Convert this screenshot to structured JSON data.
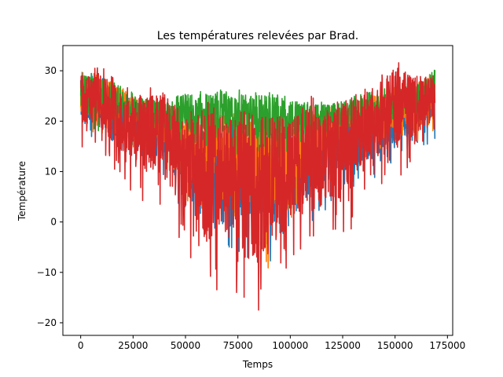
{
  "chart_data": {
    "type": "line",
    "title": "Les températures relevées par Brad.",
    "xlabel": "Temps",
    "ylabel": "Température",
    "xlim": [
      -8500,
      177500
    ],
    "ylim": [
      -22.5,
      35
    ],
    "xticks": [
      0,
      25000,
      50000,
      75000,
      100000,
      125000,
      150000,
      175000
    ],
    "yticks": [
      -20,
      -10,
      0,
      10,
      20,
      30
    ],
    "grid": false,
    "legend": "none",
    "series": [
      {
        "color": "#1f77b4",
        "x": [
          0,
          10000,
          20000,
          30000,
          40000,
          50000,
          60000,
          70000,
          80000,
          90000,
          100000,
          110000,
          120000,
          130000,
          140000,
          150000,
          160000,
          169000
        ],
        "envelope": [
          [
            17,
            30
          ],
          [
            15,
            29
          ],
          [
            12,
            26
          ],
          [
            10,
            24
          ],
          [
            8,
            22
          ],
          [
            0,
            20
          ],
          [
            -5,
            21
          ],
          [
            -5,
            20
          ],
          [
            -8,
            21
          ],
          [
            -8,
            19
          ],
          [
            -5,
            20
          ],
          [
            0,
            20
          ],
          [
            3,
            22
          ],
          [
            5,
            23
          ],
          [
            8,
            24
          ],
          [
            12,
            25
          ],
          [
            14,
            27
          ],
          [
            16,
            30
          ]
        ]
      },
      {
        "color": "#ff7f0e",
        "x": [
          0,
          10000,
          20000,
          30000,
          40000,
          50000,
          60000,
          70000,
          80000,
          90000,
          100000,
          110000,
          120000,
          130000,
          140000,
          150000,
          160000,
          169000
        ],
        "envelope": [
          [
            18,
            30
          ],
          [
            17,
            29
          ],
          [
            15,
            27
          ],
          [
            14,
            25
          ],
          [
            12,
            23
          ],
          [
            3,
            22
          ],
          [
            0,
            22
          ],
          [
            1,
            23
          ],
          [
            -5,
            22
          ],
          [
            -10,
            22
          ],
          [
            0,
            21
          ],
          [
            8,
            22
          ],
          [
            12,
            23
          ],
          [
            13,
            24
          ],
          [
            14,
            25
          ],
          [
            15,
            27
          ],
          [
            16,
            28
          ],
          [
            17,
            30
          ]
        ]
      },
      {
        "color": "#2ca02c",
        "x": [
          0,
          10000,
          20000,
          30000,
          40000,
          50000,
          60000,
          70000,
          80000,
          90000,
          100000,
          110000,
          120000,
          130000,
          140000,
          150000,
          160000,
          169000
        ],
        "envelope": [
          [
            18,
            30
          ],
          [
            18,
            29
          ],
          [
            17,
            27
          ],
          [
            17,
            25
          ],
          [
            15,
            24
          ],
          [
            15,
            26
          ],
          [
            13,
            26
          ],
          [
            13,
            27
          ],
          [
            13,
            26
          ],
          [
            12,
            26
          ],
          [
            13,
            25
          ],
          [
            14,
            24
          ],
          [
            15,
            24
          ],
          [
            16,
            25
          ],
          [
            17,
            26
          ],
          [
            18,
            27
          ],
          [
            19,
            28
          ],
          [
            18,
            31
          ]
        ]
      },
      {
        "color": "#d62728",
        "x": [
          0,
          10000,
          20000,
          30000,
          40000,
          50000,
          60000,
          70000,
          80000,
          90000,
          100000,
          110000,
          120000,
          130000,
          140000,
          150000,
          160000,
          169000
        ],
        "envelope": [
          [
            15,
            30
          ],
          [
            13,
            31
          ],
          [
            8,
            27
          ],
          [
            3,
            26
          ],
          [
            0,
            28
          ],
          [
            -5,
            22
          ],
          [
            -16,
            25
          ],
          [
            -12,
            23
          ],
          [
            -20,
            22
          ],
          [
            -18,
            24
          ],
          [
            -10,
            22
          ],
          [
            -4,
            25
          ],
          [
            -5,
            24
          ],
          [
            -2,
            27
          ],
          [
            5,
            28
          ],
          [
            8,
            32
          ],
          [
            12,
            30
          ],
          [
            16,
            30
          ]
        ]
      }
    ]
  }
}
